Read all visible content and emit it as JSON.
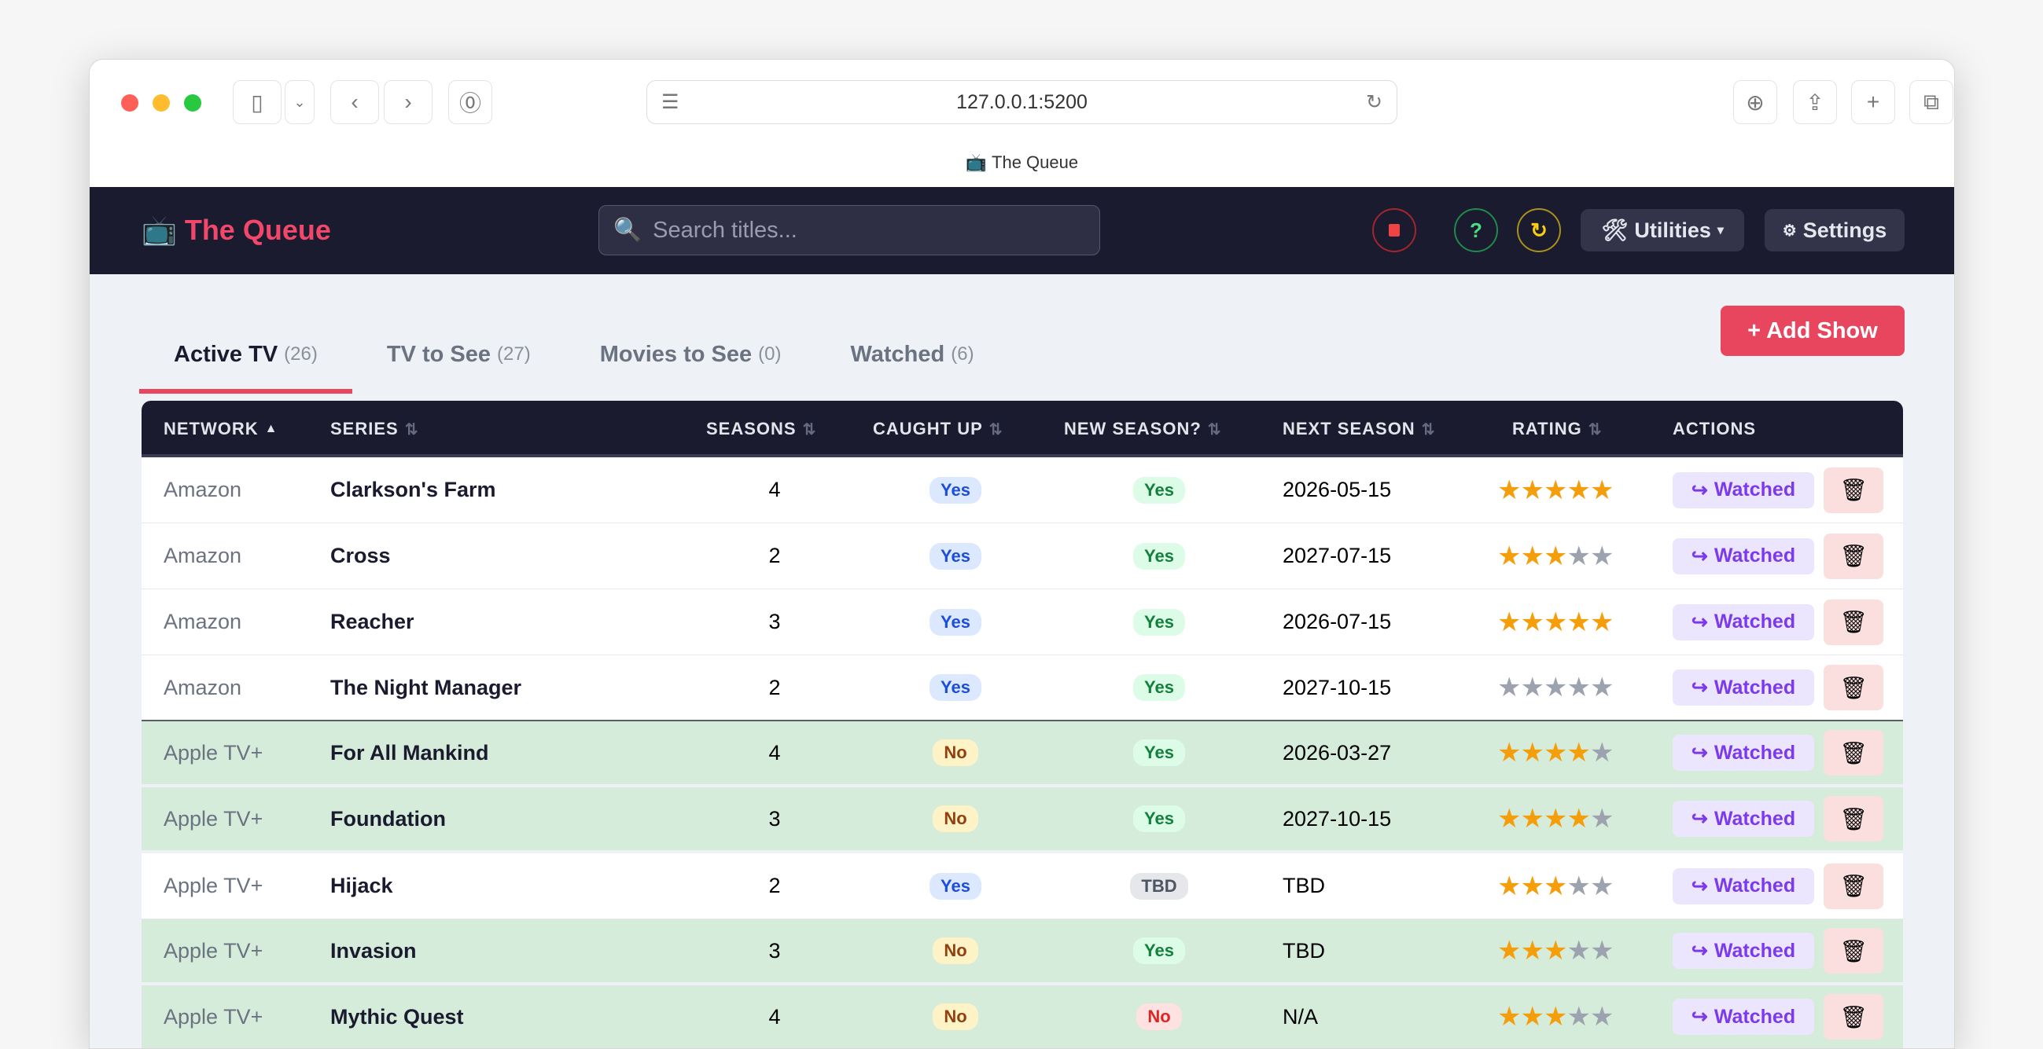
{
  "browser": {
    "url": "127.0.0.1:5200",
    "tab_title": "The Queue"
  },
  "app": {
    "title": "The Queue",
    "search_placeholder": "Search titles...",
    "utilities": "Utilities",
    "settings": "Settings",
    "add_show": "+ Add Show",
    "help": "?"
  },
  "tabs": [
    {
      "label": "Active TV",
      "count": "(26)"
    },
    {
      "label": "TV to See",
      "count": "(27)"
    },
    {
      "label": "Movies to See",
      "count": "(0)"
    },
    {
      "label": "Watched",
      "count": "(6)"
    }
  ],
  "columns": [
    "NETWORK",
    "SERIES",
    "SEASONS",
    "CAUGHT UP",
    "NEW SEASON?",
    "NEXT SEASON",
    "RATING",
    "ACTIONS"
  ],
  "watched_label": "Watched",
  "colors": {
    "accent": "#e8455f",
    "header": "#1a1b2e",
    "star_on": "#f59e0b",
    "star_off": "#9ca3af",
    "highlight_row": "#d5ecdb"
  },
  "rows": [
    {
      "network": "Amazon",
      "series": "Clarkson's Farm",
      "seasons": "4",
      "caught_up": "Yes",
      "new_season": "Yes",
      "next_season": "2026-05-15",
      "rating": 5,
      "highlight": false
    },
    {
      "network": "Amazon",
      "series": "Cross",
      "seasons": "2",
      "caught_up": "Yes",
      "new_season": "Yes",
      "next_season": "2027-07-15",
      "rating": 3,
      "highlight": false
    },
    {
      "network": "Amazon",
      "series": "Reacher",
      "seasons": "3",
      "caught_up": "Yes",
      "new_season": "Yes",
      "next_season": "2026-07-15",
      "rating": 5,
      "highlight": false
    },
    {
      "network": "Amazon",
      "series": "The Night Manager",
      "seasons": "2",
      "caught_up": "Yes",
      "new_season": "Yes",
      "next_season": "2027-10-15",
      "rating": 0,
      "highlight": false
    },
    {
      "network": "Apple TV+",
      "series": "For All Mankind",
      "seasons": "4",
      "caught_up": "No",
      "new_season": "Yes",
      "next_season": "2026-03-27",
      "rating": 4,
      "highlight": true
    },
    {
      "network": "Apple TV+",
      "series": "Foundation",
      "seasons": "3",
      "caught_up": "No",
      "new_season": "Yes",
      "next_season": "2027-10-15",
      "rating": 4,
      "highlight": true
    },
    {
      "network": "Apple TV+",
      "series": "Hijack",
      "seasons": "2",
      "caught_up": "Yes",
      "new_season": "TBD",
      "next_season": "TBD",
      "rating": 3,
      "highlight": false
    },
    {
      "network": "Apple TV+",
      "series": "Invasion",
      "seasons": "3",
      "caught_up": "No",
      "new_season": "Yes",
      "next_season": "TBD",
      "rating": 3,
      "highlight": true
    },
    {
      "network": "Apple TV+",
      "series": "Mythic Quest",
      "seasons": "4",
      "caught_up": "No",
      "new_season": "No",
      "next_season": "N/A",
      "rating": 3,
      "highlight": true
    }
  ]
}
